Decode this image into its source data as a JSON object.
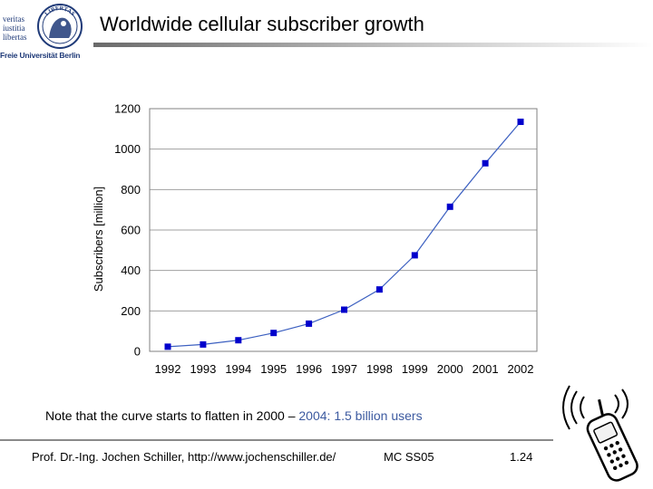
{
  "header": {
    "title": "Worldwide cellular subscriber growth",
    "logo": {
      "motto_1": "veritas",
      "motto_2": "iustitia",
      "motto_3": "libertas",
      "university": "Freie Universität Berlin",
      "seal_text": "LIBERTAS"
    }
  },
  "chart_data": {
    "type": "line",
    "title": "",
    "xlabel": "",
    "ylabel": "Subscribers [million]",
    "categories": [
      "1992",
      "1993",
      "1994",
      "1995",
      "1996",
      "1997",
      "1998",
      "1999",
      "2000",
      "2001",
      "2002"
    ],
    "series": [
      {
        "name": "Subscribers",
        "values": [
          23,
          34,
          55,
          91,
          137,
          206,
          306,
          475,
          715,
          930,
          1135
        ]
      }
    ],
    "ylim": [
      0,
      1200
    ],
    "yticks": [
      "0",
      "200",
      "400",
      "600",
      "800",
      "1000",
      "1200"
    ],
    "grid": true,
    "marker_color": "#0000cc",
    "line_color": "#3b5fc0"
  },
  "note": {
    "text_black": "Note that the curve starts to flatten in 2000 – ",
    "text_blue": "2004: 1.5 billion users",
    "blue_color": "#3c5aa0"
  },
  "footer": {
    "author": "Prof. Dr.-Ing. Jochen Schiller, http://www.jochenschiller.de/",
    "course": "MC SS05",
    "page": "1.24"
  }
}
